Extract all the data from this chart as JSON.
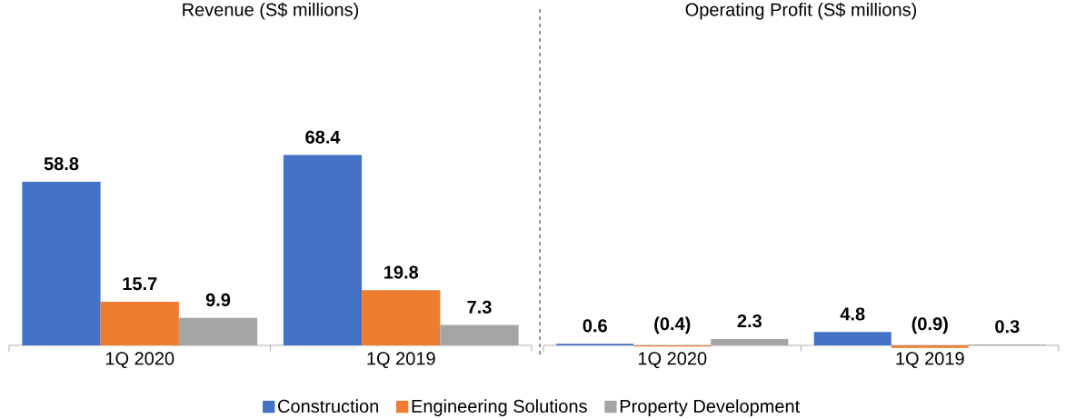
{
  "chart_data": [
    {
      "type": "bar",
      "title": "Revenue (S$ millions)",
      "categories": [
        "1Q 2020",
        "1Q 2019"
      ],
      "data_labels": true,
      "legend": "bottom",
      "series": [
        {
          "name": "Construction",
          "color": "#4472c4",
          "values": [
            58.8,
            68.4
          ]
        },
        {
          "name": "Engineering Solutions",
          "color": "#ed7d31",
          "values": [
            15.7,
            19.8
          ]
        },
        {
          "name": "Property Development",
          "color": "#a5a5a5",
          "values": [
            9.9,
            7.3
          ]
        }
      ]
    },
    {
      "type": "bar",
      "title": "Operating Profit (S$ millions)",
      "categories": [
        "1Q 2020",
        "1Q 2019"
      ],
      "series": [
        {
          "color": "#4472c4",
          "values": [
            0.6,
            4.8
          ],
          "value_labels": [
            "0.6",
            "4.8"
          ]
        },
        {
          "color": "#ed7d31",
          "values": [
            -0.4,
            -0.9
          ],
          "value_labels": [
            "(0.4)",
            "(0.9)"
          ]
        },
        {
          "color": "#a5a5a5",
          "values": [
            2.3,
            0.3
          ],
          "value_labels": [
            "2.3",
            "0.3"
          ]
        }
      ]
    }
  ]
}
